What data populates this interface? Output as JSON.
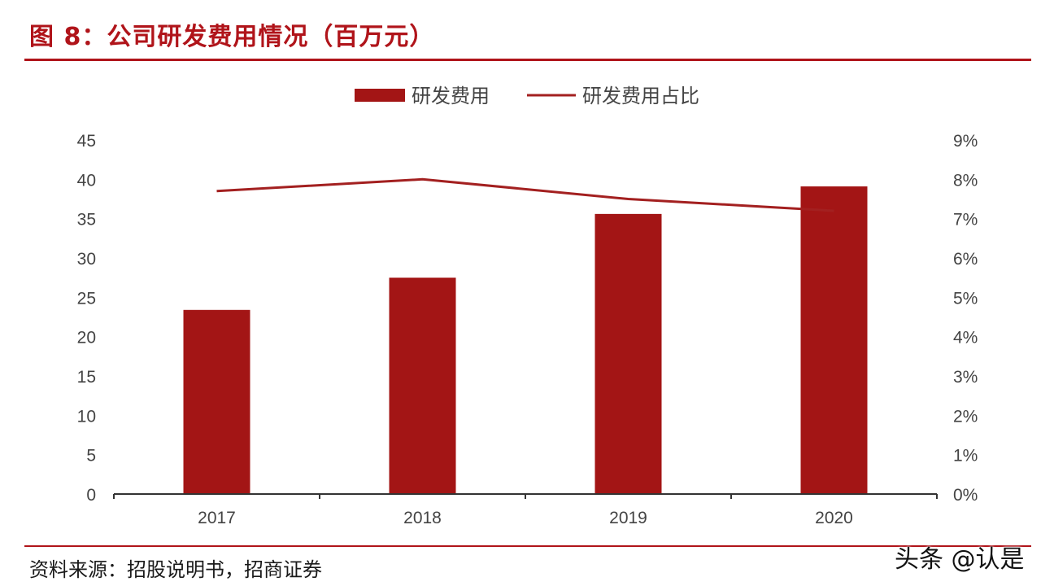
{
  "title": "图 8：公司研发费用情况（百万元）",
  "source": "资料来源：招股说明书，招商证券",
  "watermark": "头条 @认是",
  "colors": {
    "accent": "#b0141a",
    "bar": "#a31515",
    "line": "#a32020"
  },
  "chart_data": {
    "type": "bar",
    "title": "",
    "xlabel": "",
    "ylabel": "",
    "categories": [
      "2017",
      "2018",
      "2019",
      "2020"
    ],
    "series": [
      {
        "name": "研发费用",
        "type": "bar",
        "axis": "left",
        "values": [
          23.4,
          27.5,
          35.6,
          39.1
        ]
      },
      {
        "name": "研发费用占比",
        "type": "line",
        "axis": "right",
        "values": [
          7.7,
          8.0,
          7.5,
          7.2
        ]
      }
    ],
    "ylim": [
      0,
      45
    ],
    "y2lim": [
      0,
      9
    ],
    "left_ticks": [
      "0",
      "5",
      "10",
      "15",
      "20",
      "25",
      "30",
      "35",
      "40",
      "45"
    ],
    "right_ticks": [
      "0%",
      "1%",
      "2%",
      "3%",
      "4%",
      "5%",
      "6%",
      "7%",
      "8%",
      "9%"
    ],
    "grid": false,
    "legend": "top-center"
  }
}
